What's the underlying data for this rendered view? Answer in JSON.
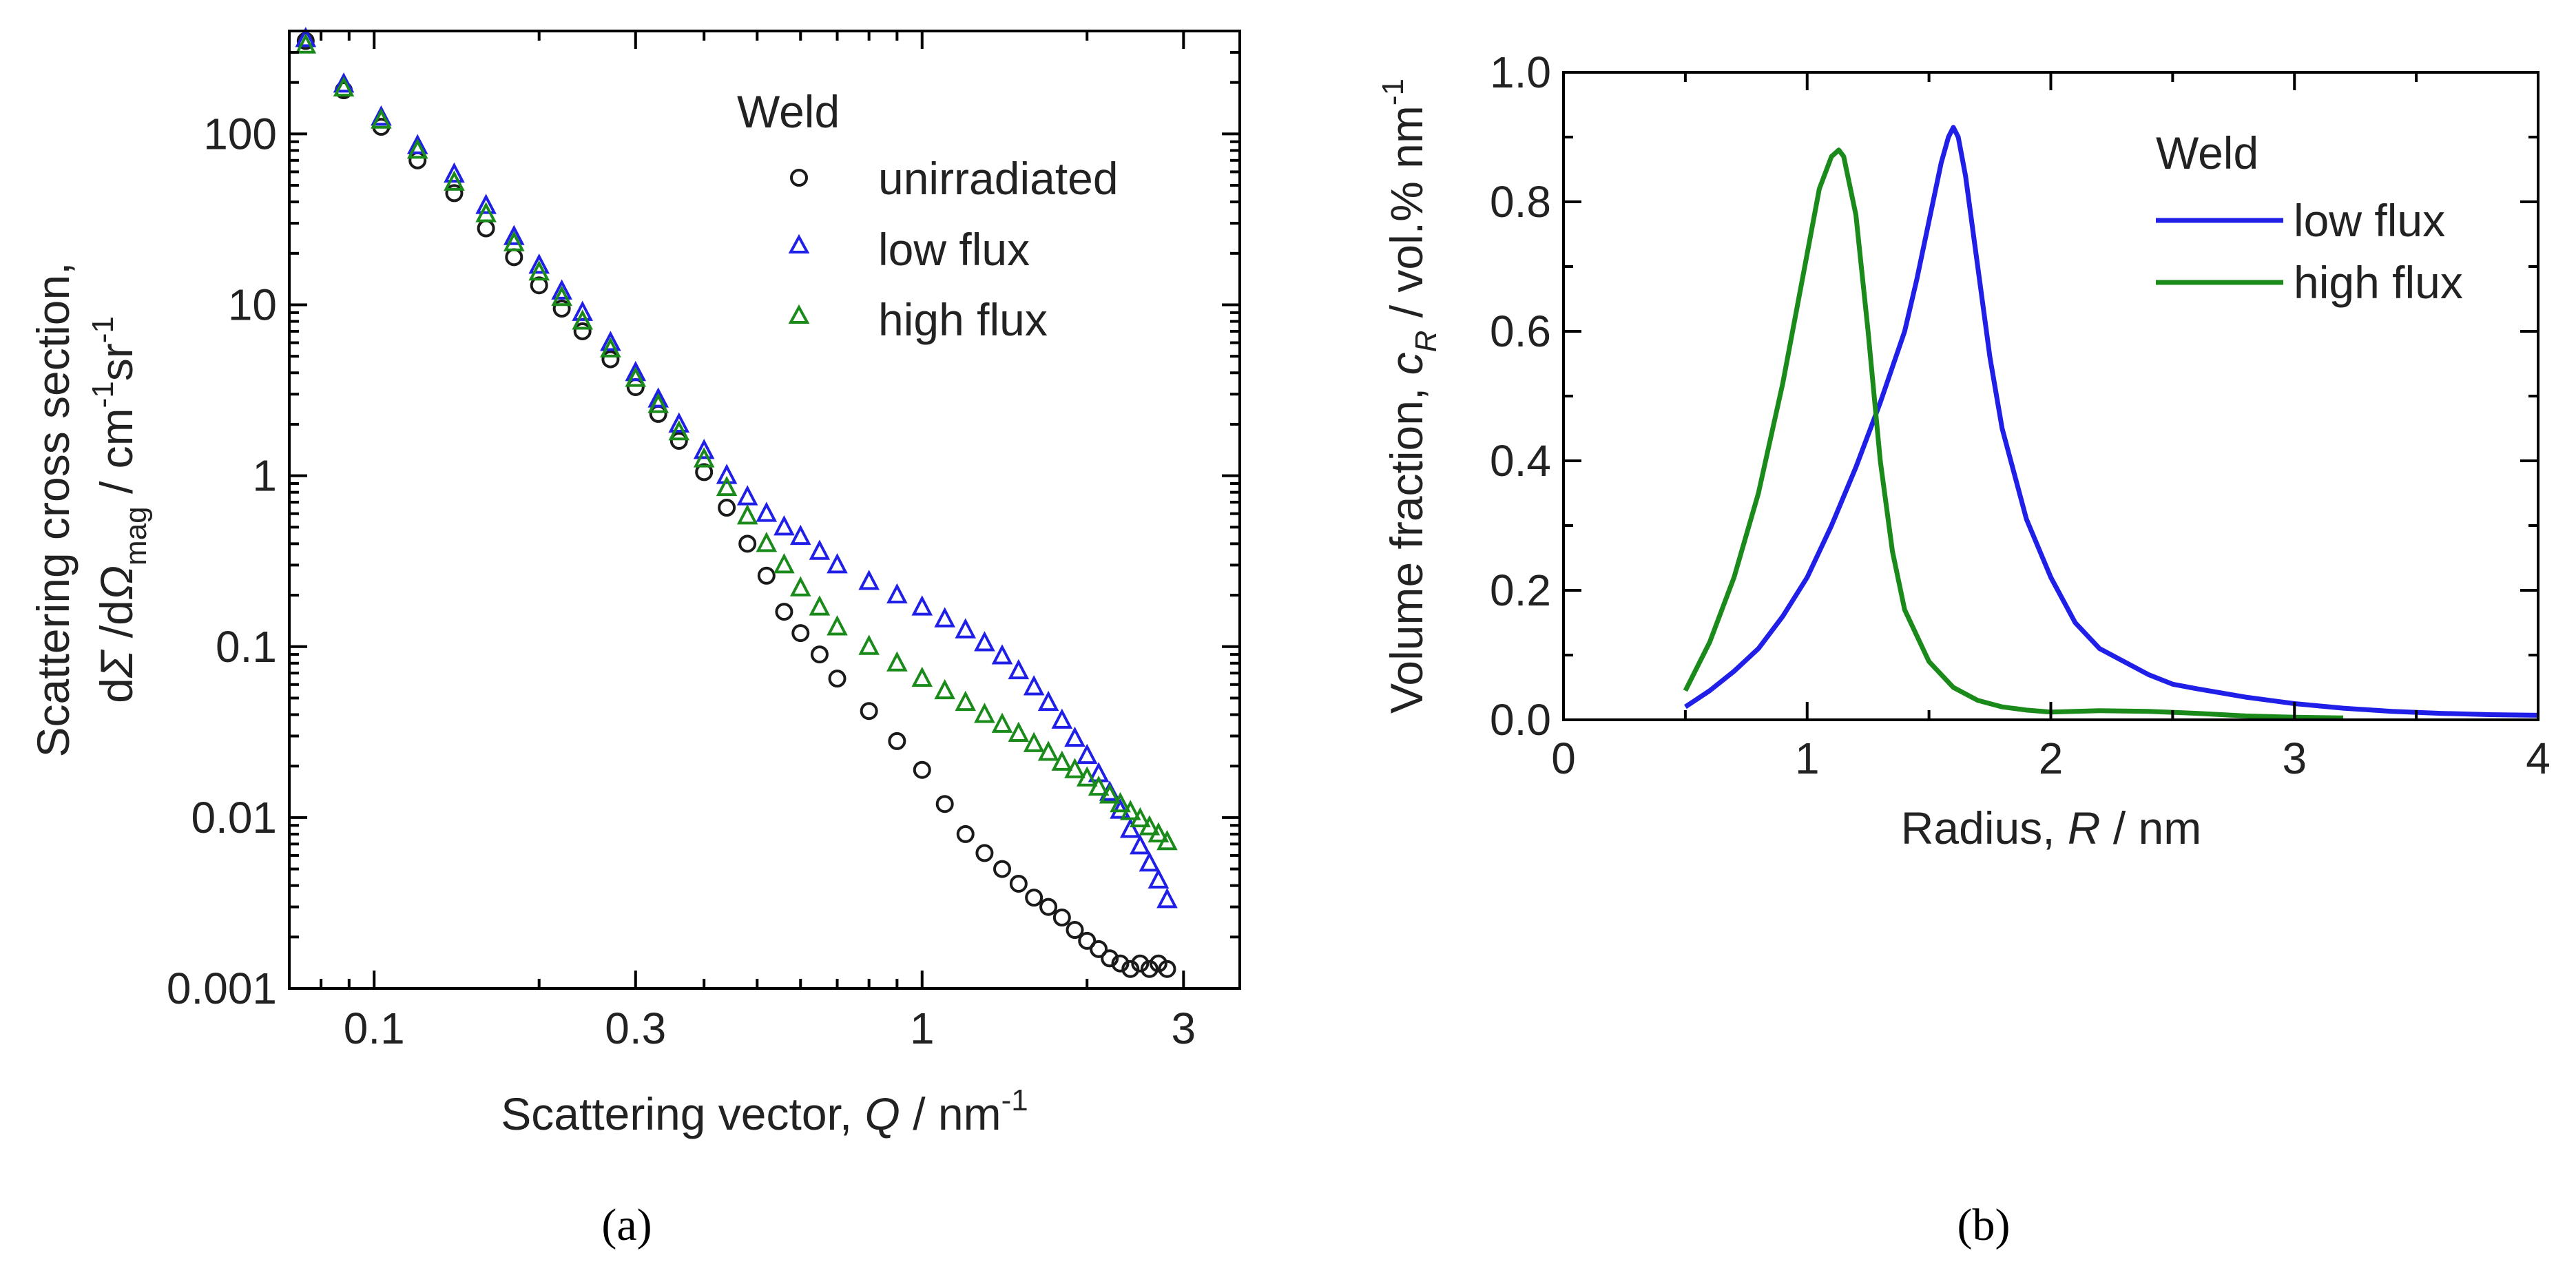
{
  "colors": {
    "unirradiated": "#1a1a1a",
    "low_flux": "#1f1fe8",
    "high_flux": "#1a8a1a",
    "axis": "#000000"
  },
  "panels": {
    "a": {
      "caption": "(a)",
      "xlabel": {
        "pre": "Scattering vector, ",
        "sym": "Q",
        "post": "  / nm",
        "sup": "-1"
      },
      "ylabel": {
        "line1": "Scattering cross section,",
        "d1": "d",
        "sigma": "Σ",
        "slash": " /d",
        "omega": "Ω",
        "sub": "mag",
        "units": "  / cm",
        "sup1": "-1",
        "sr": "sr",
        "sup2": "-1"
      },
      "xticks": [
        "0.1",
        "0.3",
        "1",
        "3"
      ],
      "yticks": [
        "0.001",
        "0.01",
        "0.1",
        "1",
        "10",
        "100"
      ],
      "legend_title": "Weld",
      "legend": [
        "unirradiated",
        "low flux",
        "high flux"
      ]
    },
    "b": {
      "caption": "(b)",
      "xlabel": {
        "pre": "Radius, ",
        "sym": "R",
        "post": "  / nm"
      },
      "ylabel": {
        "pre": "Volume fraction, ",
        "sym": "c",
        "sub": "R",
        "post": " / vol.% nm",
        "sup": "-1"
      },
      "xticks": [
        "0",
        "1",
        "2",
        "3",
        "4"
      ],
      "yticks": [
        "0.0",
        "0.2",
        "0.4",
        "0.6",
        "0.8",
        "1.0"
      ],
      "legend_title": "Weld",
      "legend": [
        "low flux",
        "high flux"
      ]
    }
  },
  "chart_data": [
    {
      "type": "scatter",
      "x_scale": "log",
      "y_scale": "log",
      "xlim": [
        0.07,
        3.8
      ],
      "ylim": [
        0.001,
        400
      ],
      "legend_position": "top-right",
      "series": [
        {
          "name": "unirradiated",
          "marker": "circle",
          "x": [
            0.075,
            0.088,
            0.103,
            0.12,
            0.14,
            0.16,
            0.18,
            0.2,
            0.22,
            0.24,
            0.27,
            0.3,
            0.33,
            0.36,
            0.4,
            0.44,
            0.48,
            0.52,
            0.56,
            0.6,
            0.65,
            0.7,
            0.8,
            0.9,
            1.0,
            1.1,
            1.2,
            1.3,
            1.4,
            1.5,
            1.6,
            1.7,
            1.8,
            1.9,
            2.0,
            2.1,
            2.2,
            2.3,
            2.4,
            2.5,
            2.6,
            2.7,
            2.8
          ],
          "y": [
            350,
            180,
            110,
            70,
            45,
            28,
            19,
            13,
            9.5,
            7.0,
            4.8,
            3.3,
            2.3,
            1.6,
            1.05,
            0.65,
            0.4,
            0.26,
            0.16,
            0.12,
            0.09,
            0.065,
            0.042,
            0.028,
            0.019,
            0.012,
            0.008,
            0.0062,
            0.005,
            0.0041,
            0.0034,
            0.003,
            0.0026,
            0.0022,
            0.0019,
            0.0017,
            0.0015,
            0.0014,
            0.0013,
            0.0014,
            0.0013,
            0.0014,
            0.0013
          ]
        },
        {
          "name": "low flux",
          "marker": "triangle",
          "x": [
            0.075,
            0.088,
            0.103,
            0.12,
            0.14,
            0.16,
            0.18,
            0.2,
            0.22,
            0.24,
            0.27,
            0.3,
            0.33,
            0.36,
            0.4,
            0.44,
            0.48,
            0.52,
            0.56,
            0.6,
            0.65,
            0.7,
            0.8,
            0.9,
            1.0,
            1.1,
            1.2,
            1.3,
            1.4,
            1.5,
            1.6,
            1.7,
            1.8,
            1.9,
            2.0,
            2.1,
            2.2,
            2.3,
            2.4,
            2.5,
            2.6,
            2.7,
            2.8
          ],
          "y": [
            360,
            195,
            125,
            85,
            58,
            38,
            25,
            17,
            12,
            9.0,
            6.0,
            4.0,
            2.8,
            2.0,
            1.4,
            1.0,
            0.75,
            0.6,
            0.5,
            0.44,
            0.36,
            0.3,
            0.24,
            0.2,
            0.17,
            0.145,
            0.125,
            0.105,
            0.088,
            0.072,
            0.058,
            0.047,
            0.037,
            0.029,
            0.023,
            0.018,
            0.014,
            0.011,
            0.0085,
            0.0068,
            0.0054,
            0.0043,
            0.0033
          ]
        },
        {
          "name": "high flux",
          "marker": "triangle",
          "x": [
            0.075,
            0.088,
            0.103,
            0.12,
            0.14,
            0.16,
            0.18,
            0.2,
            0.22,
            0.24,
            0.27,
            0.3,
            0.33,
            0.36,
            0.4,
            0.44,
            0.48,
            0.52,
            0.56,
            0.6,
            0.65,
            0.7,
            0.8,
            0.9,
            1.0,
            1.1,
            1.2,
            1.3,
            1.4,
            1.5,
            1.6,
            1.7,
            1.8,
            1.9,
            2.0,
            2.1,
            2.2,
            2.3,
            2.4,
            2.5,
            2.6,
            2.7,
            2.8
          ],
          "y": [
            330,
            185,
            120,
            80,
            52,
            34,
            23,
            15.5,
            11,
            8.0,
            5.5,
            3.7,
            2.6,
            1.8,
            1.25,
            0.85,
            0.58,
            0.4,
            0.3,
            0.22,
            0.17,
            0.13,
            0.1,
            0.08,
            0.065,
            0.055,
            0.047,
            0.04,
            0.035,
            0.031,
            0.027,
            0.024,
            0.021,
            0.019,
            0.017,
            0.015,
            0.0135,
            0.012,
            0.0108,
            0.0098,
            0.0088,
            0.008,
            0.0072
          ]
        }
      ]
    },
    {
      "type": "line",
      "xlim": [
        0,
        4
      ],
      "ylim": [
        0,
        1.0
      ],
      "legend_position": "top-right",
      "series": [
        {
          "name": "low flux",
          "x": [
            0.5,
            0.6,
            0.7,
            0.8,
            0.9,
            1.0,
            1.1,
            1.2,
            1.3,
            1.4,
            1.45,
            1.5,
            1.55,
            1.58,
            1.6,
            1.62,
            1.65,
            1.7,
            1.75,
            1.8,
            1.9,
            2.0,
            2.1,
            2.2,
            2.3,
            2.4,
            2.5,
            2.6,
            2.8,
            3.0,
            3.2,
            3.4,
            3.6,
            3.8,
            4.0
          ],
          "y": [
            0.02,
            0.045,
            0.075,
            0.11,
            0.16,
            0.22,
            0.3,
            0.39,
            0.49,
            0.6,
            0.68,
            0.77,
            0.86,
            0.9,
            0.915,
            0.9,
            0.84,
            0.7,
            0.56,
            0.45,
            0.31,
            0.22,
            0.15,
            0.11,
            0.09,
            0.07,
            0.055,
            0.048,
            0.035,
            0.025,
            0.018,
            0.013,
            0.01,
            0.008,
            0.007
          ]
        },
        {
          "name": "high flux",
          "x": [
            0.5,
            0.6,
            0.7,
            0.8,
            0.9,
            0.95,
            1.0,
            1.05,
            1.1,
            1.13,
            1.15,
            1.2,
            1.25,
            1.3,
            1.35,
            1.4,
            1.5,
            1.6,
            1.7,
            1.8,
            1.9,
            2.0,
            2.2,
            2.4,
            2.6,
            2.8,
            3.0,
            3.2
          ],
          "y": [
            0.045,
            0.12,
            0.22,
            0.35,
            0.52,
            0.62,
            0.72,
            0.82,
            0.87,
            0.88,
            0.87,
            0.78,
            0.6,
            0.4,
            0.26,
            0.17,
            0.09,
            0.05,
            0.03,
            0.02,
            0.015,
            0.012,
            0.014,
            0.013,
            0.01,
            0.006,
            0.004,
            0.003
          ]
        }
      ]
    }
  ]
}
